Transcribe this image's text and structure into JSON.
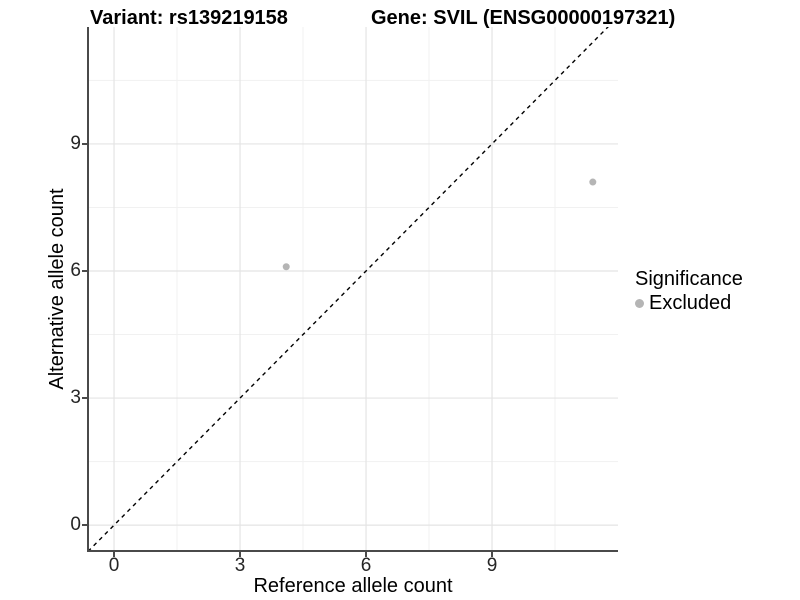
{
  "title": {
    "variant": "Variant: rs139219158",
    "gene": "Gene: SVIL (ENSG00000197321)"
  },
  "axes": {
    "x": {
      "label": "Reference allele count",
      "ticks": [
        0,
        3,
        6,
        9
      ]
    },
    "y": {
      "label": "Alternative allele count",
      "ticks": [
        0,
        3,
        6,
        9
      ]
    }
  },
  "legend": {
    "title": "Significance",
    "items": [
      {
        "label": "Excluded",
        "color": "#b5b5b5"
      }
    ]
  },
  "chart_data": {
    "type": "scatter",
    "title": "Variant: rs139219158 | Gene: SVIL (ENSG00000197321)",
    "xlabel": "Reference allele count",
    "ylabel": "Alternative allele count",
    "xlim": [
      -0.62,
      12.0
    ],
    "ylim": [
      -0.61,
      11.76
    ],
    "x_ticks": [
      0,
      3,
      6,
      9
    ],
    "y_ticks": [
      0,
      3,
      6,
      9
    ],
    "x_minor_ticks": [
      1.5,
      4.5,
      7.5,
      10.5
    ],
    "y_minor_ticks": [
      1.5,
      4.5,
      7.5,
      10.5
    ],
    "grid": "major-and-minor",
    "legend_position": "right",
    "series": [
      {
        "name": "Excluded",
        "color": "#b5b5b5",
        "marker": "circle",
        "points": [
          {
            "x": 4.1,
            "y": 6.1
          },
          {
            "x": 11.4,
            "y": 8.1
          }
        ]
      }
    ],
    "reference_line": {
      "type": "identity y=x",
      "style": "dashed",
      "color": "#000000"
    }
  },
  "colors": {
    "background": "#ffffff",
    "grid_major": "#e4e4e4",
    "grid_minor": "#f1f1f1",
    "axis_line": "#4a4a4a",
    "tick_text": "#262626",
    "point": "#b5b5b5",
    "identity_line": "#000000"
  }
}
